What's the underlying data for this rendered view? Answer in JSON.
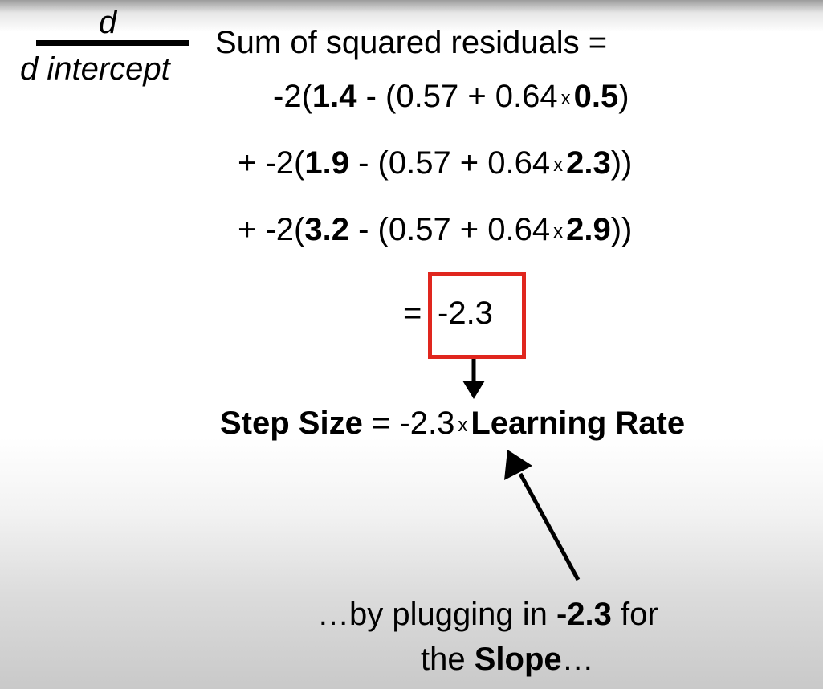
{
  "derivative": {
    "numerator": "d",
    "denominator": "d intercept",
    "heading": "Sum of squared residuals ="
  },
  "terms": [
    {
      "prefix": "-2(",
      "observed": "1.4",
      "middle": " - (0.57 + 0.64",
      "times": "x",
      "x_value": "0.5",
      "suffix": ")"
    },
    {
      "prefix": "+ -2(",
      "observed": "1.9",
      "middle": " - (0.57 + 0.64",
      "times": "x",
      "x_value": "2.3",
      "suffix": "))"
    },
    {
      "prefix": "+ -2(",
      "observed": "3.2",
      "middle": " - (0.57 + 0.64",
      "times": "x",
      "x_value": "2.9",
      "suffix": "))"
    }
  ],
  "result": {
    "equals": "=",
    "value": "-2.3",
    "highlight_color": "#e0261e"
  },
  "step": {
    "label": "Step Size",
    "equals": " = -2.3",
    "times": "x",
    "rate_label": "Learning Rate"
  },
  "caption": {
    "line1_pre": "…by plugging in ",
    "line1_bold": "-2.3",
    "line1_post": " for",
    "line2_pre": "the ",
    "line2_bold": "Slope",
    "line2_post": "…"
  }
}
